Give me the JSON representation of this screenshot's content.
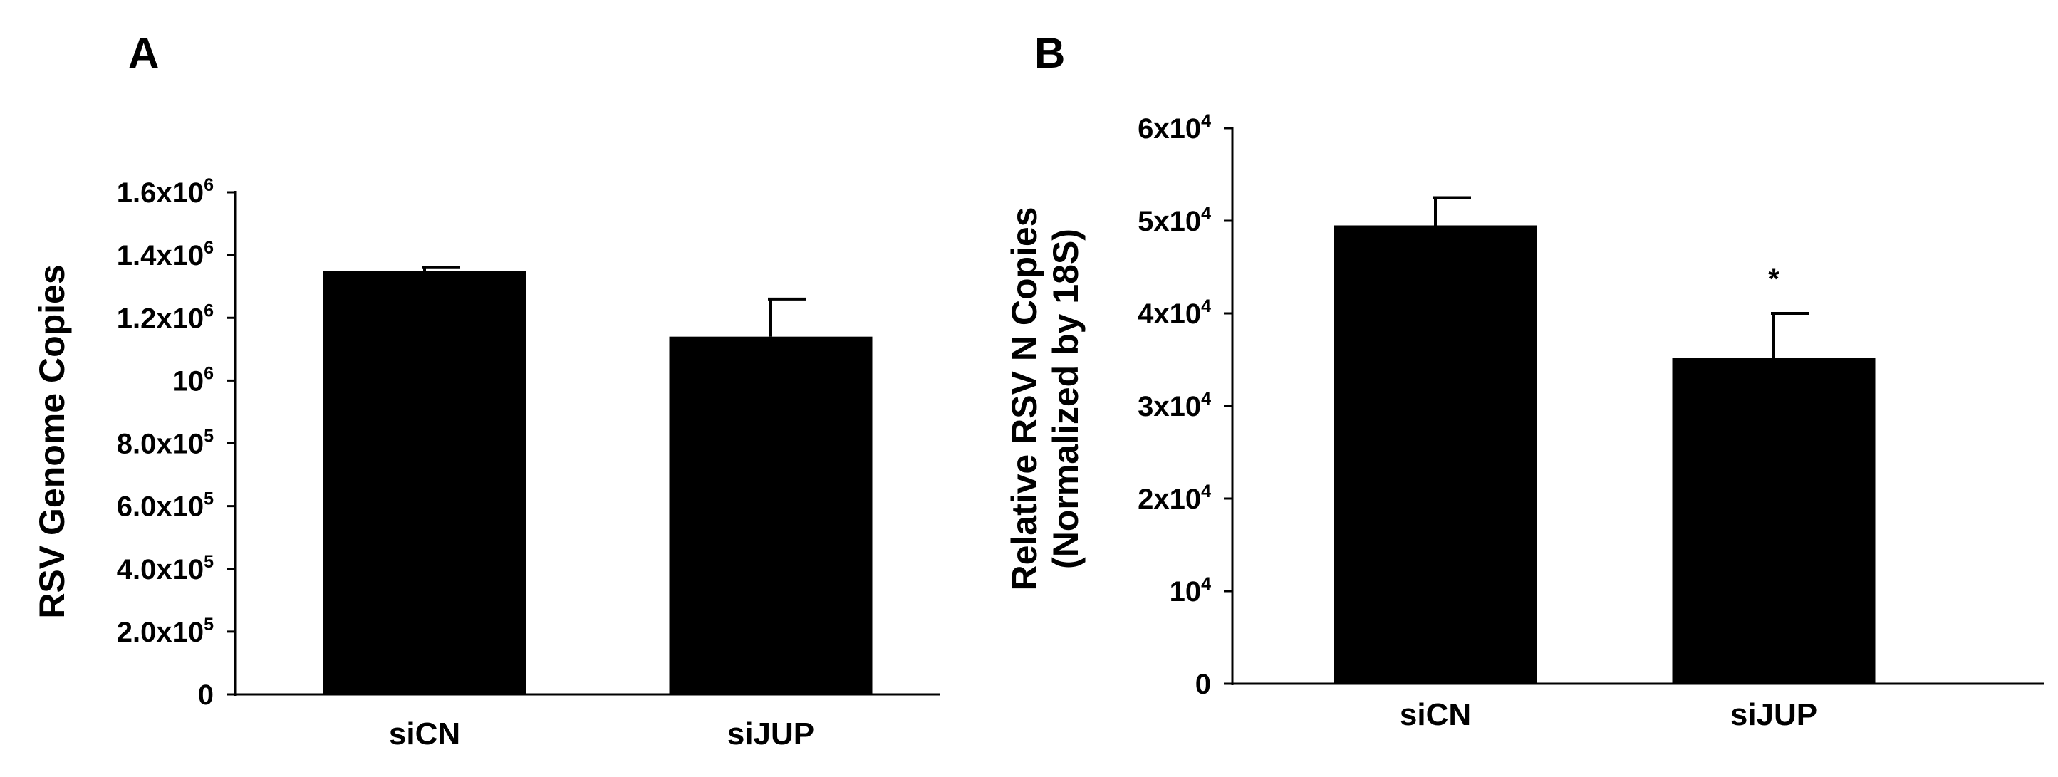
{
  "chart_data": [
    {
      "type": "bar",
      "panel_label": "A",
      "categories": [
        "siCN",
        "siJUP"
      ],
      "values": [
        1350000,
        1140000
      ],
      "errors": [
        10000,
        120000
      ],
      "ylabel": "RSV Genome Copies",
      "ylabel_lines": [
        "RSV Genome Copies"
      ],
      "ylim": [
        0,
        1600000
      ],
      "yticks": [
        {
          "value": 0,
          "base": "0",
          "exp": ""
        },
        {
          "value": 200000,
          "base": "2.0x10",
          "exp": "5"
        },
        {
          "value": 400000,
          "base": "4.0x10",
          "exp": "5"
        },
        {
          "value": 600000,
          "base": "6.0x10",
          "exp": "5"
        },
        {
          "value": 800000,
          "base": "8.0x10",
          "exp": "5"
        },
        {
          "value": 1000000,
          "base": "10",
          "exp": "6"
        },
        {
          "value": 1200000,
          "base": "1.2x10",
          "exp": "6"
        },
        {
          "value": 1400000,
          "base": "1.4x10",
          "exp": "6"
        },
        {
          "value": 1600000,
          "base": "1.6x10",
          "exp": "6"
        }
      ],
      "annotations": [
        "",
        ""
      ],
      "bar_color": "#000000",
      "grid": false
    },
    {
      "type": "bar",
      "panel_label": "B",
      "categories": [
        "siCN",
        "siJUP"
      ],
      "values": [
        49500,
        35200
      ],
      "errors": [
        3000,
        4800
      ],
      "ylabel": "Relative RSV N Copies (Normalized by 18S)",
      "ylabel_lines": [
        "Relative RSV N Copies",
        "(Normalized by 18S)"
      ],
      "ylim": [
        0,
        60000
      ],
      "yticks": [
        {
          "value": 0,
          "base": "0",
          "exp": ""
        },
        {
          "value": 10000,
          "base": "10",
          "exp": "4"
        },
        {
          "value": 20000,
          "base": "2x10",
          "exp": "4"
        },
        {
          "value": 30000,
          "base": "3x10",
          "exp": "4"
        },
        {
          "value": 40000,
          "base": "4x10",
          "exp": "4"
        },
        {
          "value": 50000,
          "base": "5x10",
          "exp": "4"
        },
        {
          "value": 60000,
          "base": "6x10",
          "exp": "4"
        }
      ],
      "annotations": [
        "",
        "*"
      ],
      "bar_color": "#000000",
      "grid": false
    }
  ]
}
